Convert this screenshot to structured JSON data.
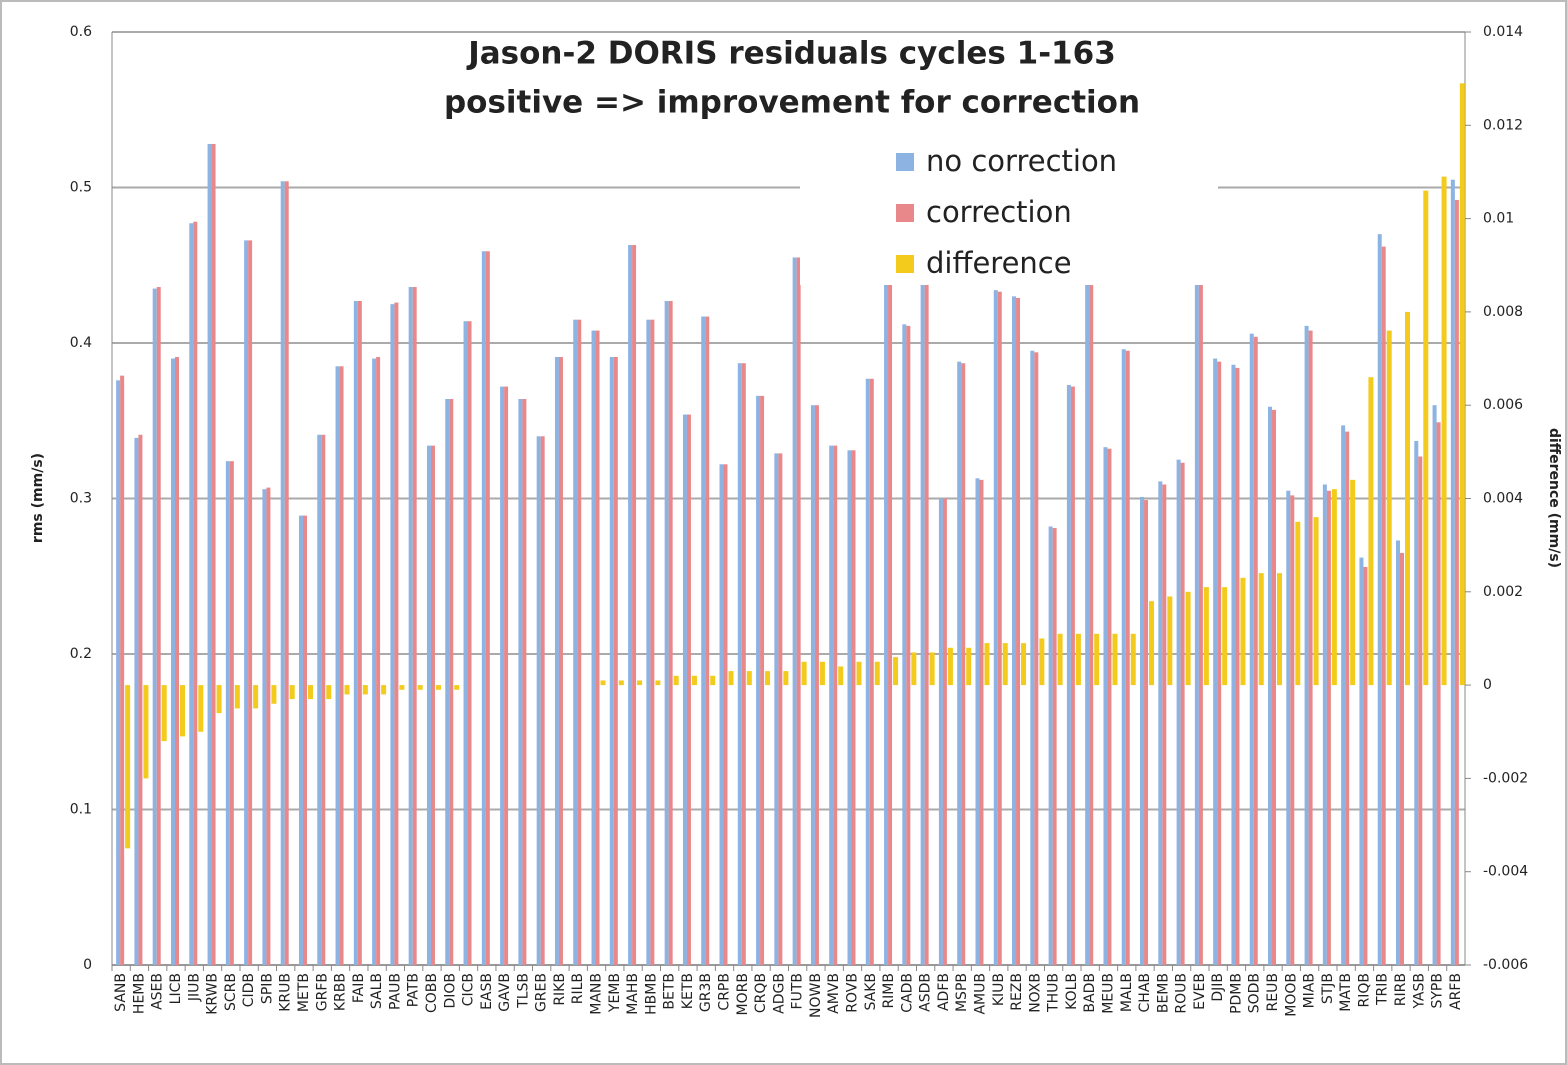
{
  "chart_data": {
    "type": "bar",
    "title": "Jason-2 DORIS residuals cycles 1-163",
    "subtitle": "positive => improvement for correction",
    "y_label": "rms (mm/s)",
    "y2_label": "difference (mm/s)",
    "categories": [
      "SANB",
      "HEMB",
      "ASEB",
      "LICB",
      "JIUB",
      "KRWB",
      "SCRB",
      "CIDB",
      "SPIB",
      "KRUB",
      "METB",
      "GRFB",
      "KRBB",
      "FAIB",
      "SALB",
      "PAUB",
      "PATB",
      "COBB",
      "DIOB",
      "CICB",
      "EASB",
      "GAVB",
      "TLSB",
      "GREB",
      "RIKB",
      "RILB",
      "MANB",
      "YEMB",
      "MAHB",
      "HBMB",
      "BETB",
      "KETB",
      "GR3B",
      "CRPB",
      "MORB",
      "CRQB",
      "ADGB",
      "FUTB",
      "NOWB",
      "AMVB",
      "ROVB",
      "SAKB",
      "RIMB",
      "CADB",
      "ASDB",
      "ADFB",
      "MSPB",
      "AMUB",
      "KIUB",
      "REZB",
      "NOXB",
      "THUB",
      "KOLB",
      "BADB",
      "MEUB",
      "MALB",
      "CHAB",
      "BEMB",
      "ROUB",
      "EVEB",
      "DJIB",
      "PDMB",
      "SODB",
      "REUB",
      "MOOB",
      "MIAB",
      "STJB",
      "MATB",
      "RIQB",
      "TRIB",
      "RIRB",
      "YASB",
      "SYPB",
      "ARFB"
    ],
    "series": [
      {
        "name": "no correction",
        "color": "#8db3e2",
        "values": [
          0.376,
          0.339,
          0.435,
          0.39,
          0.477,
          0.528,
          0.324,
          0.466,
          0.306,
          0.504,
          0.289,
          0.341,
          0.385,
          0.427,
          0.39,
          0.425,
          0.436,
          0.334,
          0.364,
          0.414,
          0.459,
          0.372,
          0.364,
          0.34,
          0.391,
          0.415,
          0.408,
          0.391,
          0.463,
          0.415,
          0.427,
          0.354,
          0.417,
          0.322,
          0.387,
          0.366,
          0.329,
          0.455,
          0.36,
          0.334,
          0.331,
          0.377,
          0.444,
          0.412,
          0.441,
          0.3,
          0.388,
          0.313,
          0.434,
          0.43,
          0.395,
          0.282,
          0.373,
          0.464,
          0.333,
          0.396,
          0.301,
          0.311,
          0.325,
          0.484,
          0.39,
          0.386,
          0.406,
          0.359,
          0.305,
          0.411,
          0.309,
          0.347,
          0.262,
          0.47,
          0.273,
          0.337,
          0.36,
          0.505
        ]
      },
      {
        "name": "correction",
        "color": "#e8888a",
        "values": [
          0.379,
          0.341,
          0.436,
          0.391,
          0.478,
          0.528,
          0.324,
          0.466,
          0.307,
          0.504,
          0.289,
          0.341,
          0.385,
          0.427,
          0.391,
          0.426,
          0.436,
          0.334,
          0.364,
          0.414,
          0.459,
          0.372,
          0.364,
          0.34,
          0.391,
          0.415,
          0.408,
          0.391,
          0.463,
          0.415,
          0.427,
          0.354,
          0.417,
          0.322,
          0.387,
          0.366,
          0.329,
          0.455,
          0.36,
          0.334,
          0.331,
          0.377,
          0.444,
          0.411,
          0.44,
          0.3,
          0.387,
          0.312,
          0.433,
          0.429,
          0.394,
          0.281,
          0.372,
          0.463,
          0.332,
          0.395,
          0.299,
          0.309,
          0.323,
          0.482,
          0.388,
          0.384,
          0.404,
          0.357,
          0.302,
          0.408,
          0.305,
          0.343,
          0.256,
          0.462,
          0.265,
          0.327,
          0.349,
          0.492
        ]
      },
      {
        "name": "difference",
        "color": "#f2cb1d",
        "axis": "y2",
        "values": [
          -0.0035,
          -0.002,
          -0.0012,
          -0.0011,
          -0.001,
          -0.0006,
          -0.0005,
          -0.0005,
          -0.0004,
          -0.0003,
          -0.0003,
          -0.0003,
          -0.0002,
          -0.0002,
          -0.0002,
          -0.0001,
          -0.0001,
          -0.0001,
          -0.0001,
          0,
          0,
          0,
          0,
          0,
          0,
          0,
          0.0001,
          0.0001,
          0.0001,
          0.0001,
          0.0002,
          0.0002,
          0.0002,
          0.0003,
          0.0003,
          0.0003,
          0.0003,
          0.0005,
          0.0005,
          0.0004,
          0.0005,
          0.0005,
          0.0006,
          0.0007,
          0.0007,
          0.0008,
          0.0008,
          0.0009,
          0.0009,
          0.0009,
          0.001,
          0.0011,
          0.0011,
          0.0011,
          0.0011,
          0.0011,
          0.0018,
          0.0019,
          0.002,
          0.0021,
          0.0021,
          0.0023,
          0.0024,
          0.0024,
          0.0035,
          0.0036,
          0.0042,
          0.0044,
          0.0066,
          0.0076,
          0.008,
          0.0106,
          0.0109,
          0.0129
        ]
      }
    ],
    "ylim": [
      0,
      0.6
    ],
    "yticks": [
      0,
      0.1,
      0.2,
      0.3,
      0.4,
      0.5,
      0.6
    ],
    "y2lim": [
      -0.006,
      0.014
    ],
    "y2ticks": [
      -0.006,
      -0.004,
      -0.002,
      0,
      0.002,
      0.004,
      0.006,
      0.008,
      0.01,
      0.012,
      0.014
    ],
    "grid": true,
    "legend": "top-right"
  }
}
